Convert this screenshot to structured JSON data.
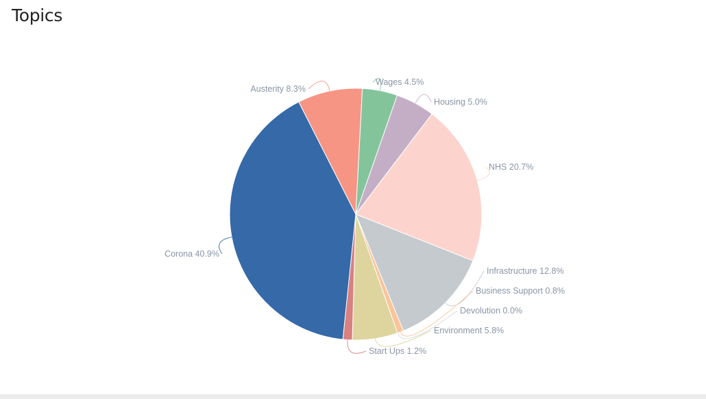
{
  "page": {
    "title": "Topics"
  },
  "chart_data": {
    "type": "pie",
    "title": "Topics",
    "slices": [
      {
        "label": "Wages",
        "value": 4.5,
        "display": "Wages 4.5%",
        "color": "#84c49b"
      },
      {
        "label": "Housing",
        "value": 5.0,
        "display": "Housing 5.0%",
        "color": "#c4aec6"
      },
      {
        "label": "NHS",
        "value": 20.7,
        "display": "NHS 20.7%",
        "color": "#fdd4cd"
      },
      {
        "label": "Infrastructure",
        "value": 12.8,
        "display": "Infrastructure 12.8%",
        "color": "#c4cacd"
      },
      {
        "label": "Business Support",
        "value": 0.8,
        "display": "Business Support 0.8%",
        "color": "#f9c49b"
      },
      {
        "label": "Devolution",
        "value": 0.0,
        "display": "Devolution 0.0%",
        "color": "#d2d8dc"
      },
      {
        "label": "Environment",
        "value": 5.8,
        "display": "Environment 5.8%",
        "color": "#ddd59d"
      },
      {
        "label": "Start Ups",
        "value": 1.2,
        "display": "Start Ups 1.2%",
        "color": "#d98081"
      },
      {
        "label": "Corona",
        "value": 40.9,
        "display": "Corona 40.9%",
        "color": "#3569a8"
      },
      {
        "label": "Austerity",
        "value": 8.3,
        "display": "Austerity 8.3%",
        "color": "#f69584"
      }
    ],
    "legend": "none",
    "label_color": "#8a95a5"
  }
}
